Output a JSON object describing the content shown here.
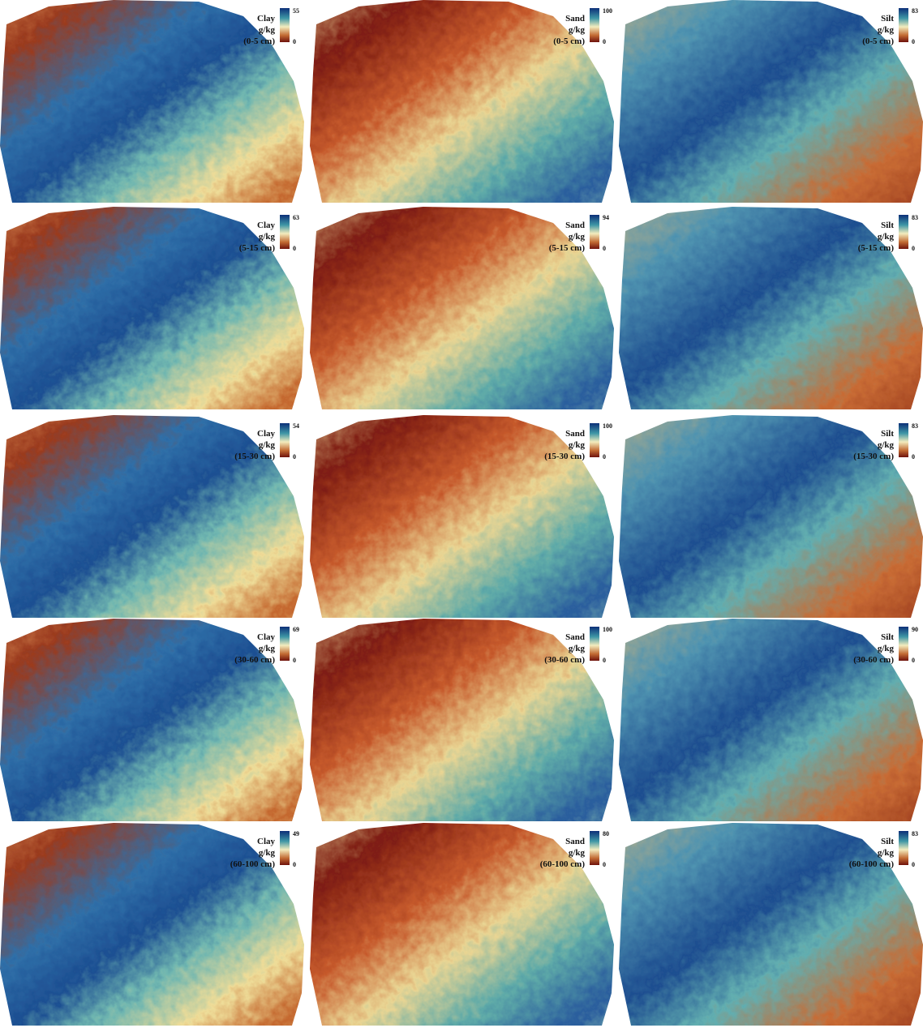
{
  "panels": [
    {
      "property": "Clay",
      "unit": "g/kg",
      "depth": "(0-5 cm)",
      "max": 55,
      "min": 0
    },
    {
      "property": "Sand",
      "unit": "g/kg",
      "depth": "(0-5 cm)",
      "max": 100,
      "min": 0
    },
    {
      "property": "Silt",
      "unit": "g/kg",
      "depth": "(0-5 cm)",
      "max": 83,
      "min": 0
    },
    {
      "property": "Clay",
      "unit": "g/kg",
      "depth": "(5-15 cm)",
      "max": 63,
      "min": 0
    },
    {
      "property": "Sand",
      "unit": "g/kg",
      "depth": "(5-15 cm)",
      "max": 94,
      "min": 0
    },
    {
      "property": "Silt",
      "unit": "g/kg",
      "depth": "(5-15 cm)",
      "max": 83,
      "min": 0
    },
    {
      "property": "Clay",
      "unit": "g/kg",
      "depth": "(15-30 cm)",
      "max": 54,
      "min": 0
    },
    {
      "property": "Sand",
      "unit": "g/kg",
      "depth": "(15-30 cm)",
      "max": 100,
      "min": 0
    },
    {
      "property": "Silt",
      "unit": "g/kg",
      "depth": "(15-30 cm)",
      "max": 83,
      "min": 0
    },
    {
      "property": "Clay",
      "unit": "g/kg",
      "depth": "(30-60 cm)",
      "max": 69,
      "min": 0
    },
    {
      "property": "Sand",
      "unit": "g/kg",
      "depth": "(30-60 cm)",
      "max": 100,
      "min": 0
    },
    {
      "property": "Silt",
      "unit": "g/kg",
      "depth": "(30-60 cm)",
      "max": 90,
      "min": 0
    },
    {
      "property": "Clay",
      "unit": "g/kg",
      "depth": "(60-100 cm)",
      "max": 49,
      "min": 0
    },
    {
      "property": "Sand",
      "unit": "g/kg",
      "depth": "(60-100 cm)",
      "max": 80,
      "min": 0
    },
    {
      "property": "Silt",
      "unit": "g/kg",
      "depth": "(60-100 cm)",
      "max": 83,
      "min": 0
    }
  ]
}
